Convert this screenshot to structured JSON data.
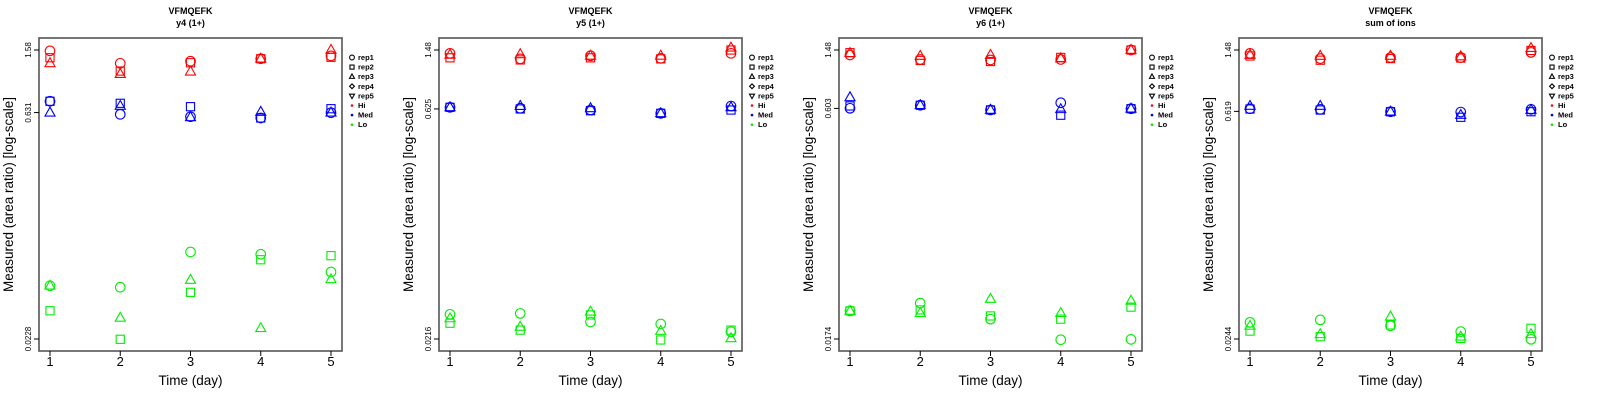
{
  "chart_data": [
    {
      "type": "scatter",
      "title": "VFMQEFK",
      "subtitle": "y4 (1+)",
      "xlabel": "Time (day)",
      "ylabel": "Measured (area ratio) [log-scale]",
      "x": [
        1,
        2,
        3,
        4,
        5
      ],
      "xticks": [
        "1",
        "2",
        "3",
        "4",
        "5"
      ],
      "yscale": "log",
      "yticks": [
        {
          "label": "1.58",
          "value": 1.58
        },
        {
          "label": "0.631",
          "value": 0.631
        },
        {
          "label": "0.0228",
          "value": 0.0228
        }
      ],
      "ylim": [
        0.0228,
        1.58
      ],
      "legend_position": "right",
      "series": [
        {
          "group": "Hi",
          "rep": "rep1",
          "values": [
            1.56,
            1.3,
            1.34,
            1.39,
            1.45
          ]
        },
        {
          "group": "Hi",
          "rep": "rep2",
          "values": [
            1.41,
            1.16,
            1.31,
            1.39,
            1.42
          ]
        },
        {
          "group": "Hi",
          "rep": "rep3",
          "values": [
            1.3,
            1.11,
            1.15,
            1.39,
            1.58
          ]
        },
        {
          "group": "Med",
          "rep": "rep1",
          "values": [
            0.745,
            0.615,
            0.594,
            0.583,
            0.63
          ]
        },
        {
          "group": "Med",
          "rep": "rep2",
          "values": [
            0.745,
            0.723,
            0.688,
            0.583,
            0.668
          ]
        },
        {
          "group": "Med",
          "rep": "rep3",
          "values": [
            0.63,
            0.695,
            0.589,
            0.637,
            0.63
          ]
        },
        {
          "group": "Lo",
          "rep": "rep1",
          "values": [
            0.0498,
            0.0487,
            0.0817,
            0.079,
            0.0609
          ]
        },
        {
          "group": "Lo",
          "rep": "rep2",
          "values": [
            0.0345,
            0.0227,
            0.0452,
            0.0729,
            0.0774
          ]
        },
        {
          "group": "Lo",
          "rep": "rep3",
          "values": [
            0.0498,
            0.0311,
            0.0542,
            0.0267,
            0.0547
          ]
        }
      ]
    },
    {
      "type": "scatter",
      "title": "VFMQEFK",
      "subtitle": "y5 (1+)",
      "xlabel": "Time (day)",
      "ylabel": "Measured (area ratio) [log-scale]",
      "x": [
        1,
        2,
        3,
        4,
        5
      ],
      "xticks": [
        "1",
        "2",
        "3",
        "4",
        "5"
      ],
      "yscale": "log",
      "yticks": [
        {
          "label": "1.48",
          "value": 1.48
        },
        {
          "label": "0.625",
          "value": 0.625
        },
        {
          "label": "0.0216",
          "value": 0.0216
        }
      ],
      "ylim": [
        0.0216,
        1.48
      ],
      "legend_position": "right",
      "series": [
        {
          "group": "Hi",
          "rep": "rep1",
          "values": [
            1.41,
            1.3,
            1.36,
            1.31,
            1.41
          ]
        },
        {
          "group": "Hi",
          "rep": "rep2",
          "values": [
            1.32,
            1.28,
            1.32,
            1.3,
            1.48
          ]
        },
        {
          "group": "Hi",
          "rep": "rep3",
          "values": [
            1.38,
            1.39,
            1.36,
            1.36,
            1.53
          ]
        },
        {
          "group": "Med",
          "rep": "rep1",
          "values": [
            0.64,
            0.631,
            0.615,
            0.586,
            0.652
          ]
        },
        {
          "group": "Med",
          "rep": "rep2",
          "values": [
            0.64,
            0.625,
            0.609,
            0.586,
            0.615
          ]
        },
        {
          "group": "Med",
          "rep": "rep3",
          "values": [
            0.64,
            0.652,
            0.631,
            0.586,
            0.64
          ]
        },
        {
          "group": "Lo",
          "rep": "rep1",
          "values": [
            0.031,
            0.0314,
            0.0277,
            0.0269,
            0.024
          ]
        },
        {
          "group": "Lo",
          "rep": "rep2",
          "values": [
            0.0272,
            0.0246,
            0.0307,
            0.0213,
            0.0246
          ]
        },
        {
          "group": "Lo",
          "rep": "rep3",
          "values": [
            0.0292,
            0.0258,
            0.0322,
            0.0243,
            0.0218
          ]
        }
      ]
    },
    {
      "type": "scatter",
      "title": "VFMQEFK",
      "subtitle": "y6 (1+)",
      "xlabel": "Time (day)",
      "ylabel": "Measured (area ratio) [log-scale]",
      "x": [
        1,
        2,
        3,
        4,
        5
      ],
      "xticks": [
        "1",
        "2",
        "3",
        "4",
        "5"
      ],
      "yscale": "log",
      "yticks": [
        {
          "label": "1.48",
          "value": 1.48
        },
        {
          "label": "0.603",
          "value": 0.603
        },
        {
          "label": "0.0174",
          "value": 0.0174
        }
      ],
      "ylim": [
        0.0174,
        1.48
      ],
      "legend_position": "right",
      "series": [
        {
          "group": "Hi",
          "rep": "rep1",
          "values": [
            1.37,
            1.28,
            1.27,
            1.28,
            1.48
          ]
        },
        {
          "group": "Hi",
          "rep": "rep2",
          "values": [
            1.42,
            1.26,
            1.24,
            1.32,
            1.48
          ]
        },
        {
          "group": "Hi",
          "rep": "rep3",
          "values": [
            1.41,
            1.35,
            1.37,
            1.3,
            1.48
          ]
        },
        {
          "group": "Med",
          "rep": "rep1",
          "values": [
            0.604,
            0.633,
            0.589,
            0.658,
            0.6
          ]
        },
        {
          "group": "Med",
          "rep": "rep2",
          "values": [
            0.626,
            0.633,
            0.589,
            0.543,
            0.6
          ]
        },
        {
          "group": "Med",
          "rep": "rep3",
          "values": [
            0.715,
            0.633,
            0.589,
            0.595,
            0.6
          ]
        },
        {
          "group": "Lo",
          "rep": "rep1",
          "values": [
            0.0268,
            0.0302,
            0.0236,
            0.0172,
            0.0173
          ]
        },
        {
          "group": "Lo",
          "rep": "rep2",
          "values": [
            0.0268,
            0.0272,
            0.0248,
            0.0236,
            0.0284
          ]
        },
        {
          "group": "Lo",
          "rep": "rep3",
          "values": [
            0.0268,
            0.0259,
            0.0322,
            0.0259,
            0.0313
          ]
        }
      ]
    },
    {
      "type": "scatter",
      "title": "VFMQEFK",
      "subtitle": "sum of ions",
      "xlabel": "Time (day)",
      "ylabel": "Measured (area ratio) [log-scale]",
      "x": [
        1,
        2,
        3,
        4,
        5
      ],
      "xticks": [
        "1",
        "2",
        "3",
        "4",
        "5"
      ],
      "yscale": "log",
      "yticks": [
        {
          "label": "1.48",
          "value": 1.48
        },
        {
          "label": "0.619",
          "value": 0.619
        },
        {
          "label": "0.0244",
          "value": 0.0244
        }
      ],
      "ylim": [
        0.0244,
        1.48
      ],
      "legend_position": "right",
      "series": [
        {
          "group": "Hi",
          "rep": "rep1",
          "values": [
            1.41,
            1.31,
            1.33,
            1.33,
            1.43
          ]
        },
        {
          "group": "Hi",
          "rep": "rep2",
          "values": [
            1.36,
            1.28,
            1.31,
            1.32,
            1.47
          ]
        },
        {
          "group": "Hi",
          "rep": "rep3",
          "values": [
            1.38,
            1.36,
            1.36,
            1.35,
            1.52
          ]
        },
        {
          "group": "Med",
          "rep": "rep1",
          "values": [
            0.643,
            0.637,
            0.616,
            0.613,
            0.637
          ]
        },
        {
          "group": "Med",
          "rep": "rep2",
          "values": [
            0.64,
            0.631,
            0.616,
            0.569,
            0.616
          ]
        },
        {
          "group": "Med",
          "rep": "rep3",
          "values": [
            0.668,
            0.668,
            0.616,
            0.588,
            0.631
          ]
        },
        {
          "group": "Lo",
          "rep": "rep1",
          "values": [
            0.0309,
            0.032,
            0.0294,
            0.0271,
            0.0243
          ]
        },
        {
          "group": "Lo",
          "rep": "rep2",
          "values": [
            0.0273,
            0.0252,
            0.0298,
            0.0246,
            0.0284
          ]
        },
        {
          "group": "Lo",
          "rep": "rep3",
          "values": [
            0.0294,
            0.0261,
            0.0335,
            0.0252,
            0.0261
          ]
        }
      ]
    }
  ],
  "legend": {
    "reps": [
      {
        "label": "rep1",
        "symbol": "circle"
      },
      {
        "label": "rep2",
        "symbol": "square"
      },
      {
        "label": "rep3",
        "symbol": "triangle-up"
      },
      {
        "label": "rep4",
        "symbol": "diamond"
      },
      {
        "label": "rep5",
        "symbol": "triangle-down"
      }
    ],
    "groups": [
      {
        "label": "Hi",
        "color": "#ff0000"
      },
      {
        "label": "Med",
        "color": "#0000ff"
      },
      {
        "label": "Lo",
        "color": "#00ee00"
      }
    ]
  }
}
